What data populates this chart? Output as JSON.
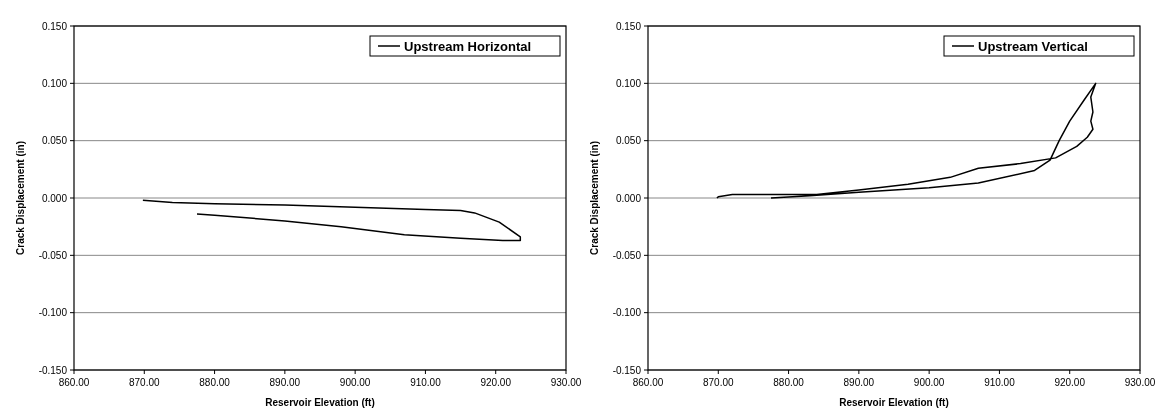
{
  "chart_data": [
    {
      "type": "line",
      "xlabel": "Reservoir Elevation (ft)",
      "ylabel": "Crack Displacement (in)",
      "xlim": [
        860,
        930
      ],
      "ylim": [
        -0.15,
        0.15
      ],
      "xticks": [
        {
          "value": 860,
          "label": "860.00"
        },
        {
          "value": 870,
          "label": "870.00"
        },
        {
          "value": 880,
          "label": "880.00"
        },
        {
          "value": 890,
          "label": "890.00"
        },
        {
          "value": 900,
          "label": "900.00"
        },
        {
          "value": 910,
          "label": "910.00"
        },
        {
          "value": 920,
          "label": "920.00"
        },
        {
          "value": 930,
          "label": "930.00"
        }
      ],
      "yticks": [
        {
          "value": -0.15,
          "label": "-0.150"
        },
        {
          "value": -0.1,
          "label": "-0.100"
        },
        {
          "value": -0.05,
          "label": "-0.050"
        },
        {
          "value": 0,
          "label": "0.000"
        },
        {
          "value": 0.05,
          "label": "0.050"
        },
        {
          "value": 0.1,
          "label": "0.100"
        },
        {
          "value": 0.15,
          "label": "0.150"
        }
      ],
      "grid": "y",
      "legend": "top right",
      "marker": "none",
      "line_style": "solid",
      "series": [
        {
          "name": "Upstream Horizontal",
          "color": "#000000",
          "x": [
            869.8,
            874,
            880,
            890,
            900,
            910,
            915,
            917,
            920.5,
            923.5,
            923.5,
            921,
            915,
            907,
            898,
            890,
            880,
            877.5
          ],
          "values": [
            -0.002,
            -0.004,
            -0.005,
            -0.006,
            -0.008,
            -0.01,
            -0.011,
            -0.013,
            -0.021,
            -0.034,
            -0.037,
            -0.037,
            -0.035,
            -0.032,
            -0.025,
            -0.02,
            -0.015,
            -0.014
          ]
        }
      ]
    },
    {
      "type": "line",
      "xlabel": "Reservoir Elevation (ft)",
      "ylabel": "Crack Displacement (in)",
      "xlim": [
        860,
        930
      ],
      "ylim": [
        -0.15,
        0.15
      ],
      "xticks": [
        {
          "value": 860,
          "label": "860.00"
        },
        {
          "value": 870,
          "label": "870.00"
        },
        {
          "value": 880,
          "label": "880.00"
        },
        {
          "value": 890,
          "label": "890.00"
        },
        {
          "value": 900,
          "label": "900.00"
        },
        {
          "value": 910,
          "label": "910.00"
        },
        {
          "value": 920,
          "label": "920.00"
        },
        {
          "value": 930,
          "label": "930.00"
        }
      ],
      "yticks": [
        {
          "value": -0.15,
          "label": "-0.150"
        },
        {
          "value": -0.1,
          "label": "-0.100"
        },
        {
          "value": -0.05,
          "label": "-0.050"
        },
        {
          "value": 0,
          "label": "0.000"
        },
        {
          "value": 0.05,
          "label": "0.050"
        },
        {
          "value": 0.1,
          "label": "0.100"
        },
        {
          "value": 0.15,
          "label": "0.150"
        }
      ],
      "grid": "y",
      "legend": "top right",
      "marker": "none",
      "line_style": "solid",
      "series": [
        {
          "name": "Upstream Vertical",
          "color": "#000000",
          "x": [
            869.8,
            870,
            872,
            880,
            884,
            890,
            897,
            903,
            907,
            913,
            918,
            921,
            922.5,
            923.3,
            923,
            923.3,
            923,
            923.7,
            922,
            920,
            918.5,
            917.2,
            915,
            907,
            900,
            890,
            883,
            877.5
          ],
          "values": [
            0,
            0.001,
            0.003,
            0.003,
            0.003,
            0.007,
            0.012,
            0.018,
            0.026,
            0.03,
            0.035,
            0.045,
            0.053,
            0.06,
            0.067,
            0.075,
            0.088,
            0.1,
            0.085,
            0.067,
            0.05,
            0.033,
            0.024,
            0.013,
            0.009,
            0.005,
            0.002,
            0
          ]
        }
      ]
    }
  ]
}
